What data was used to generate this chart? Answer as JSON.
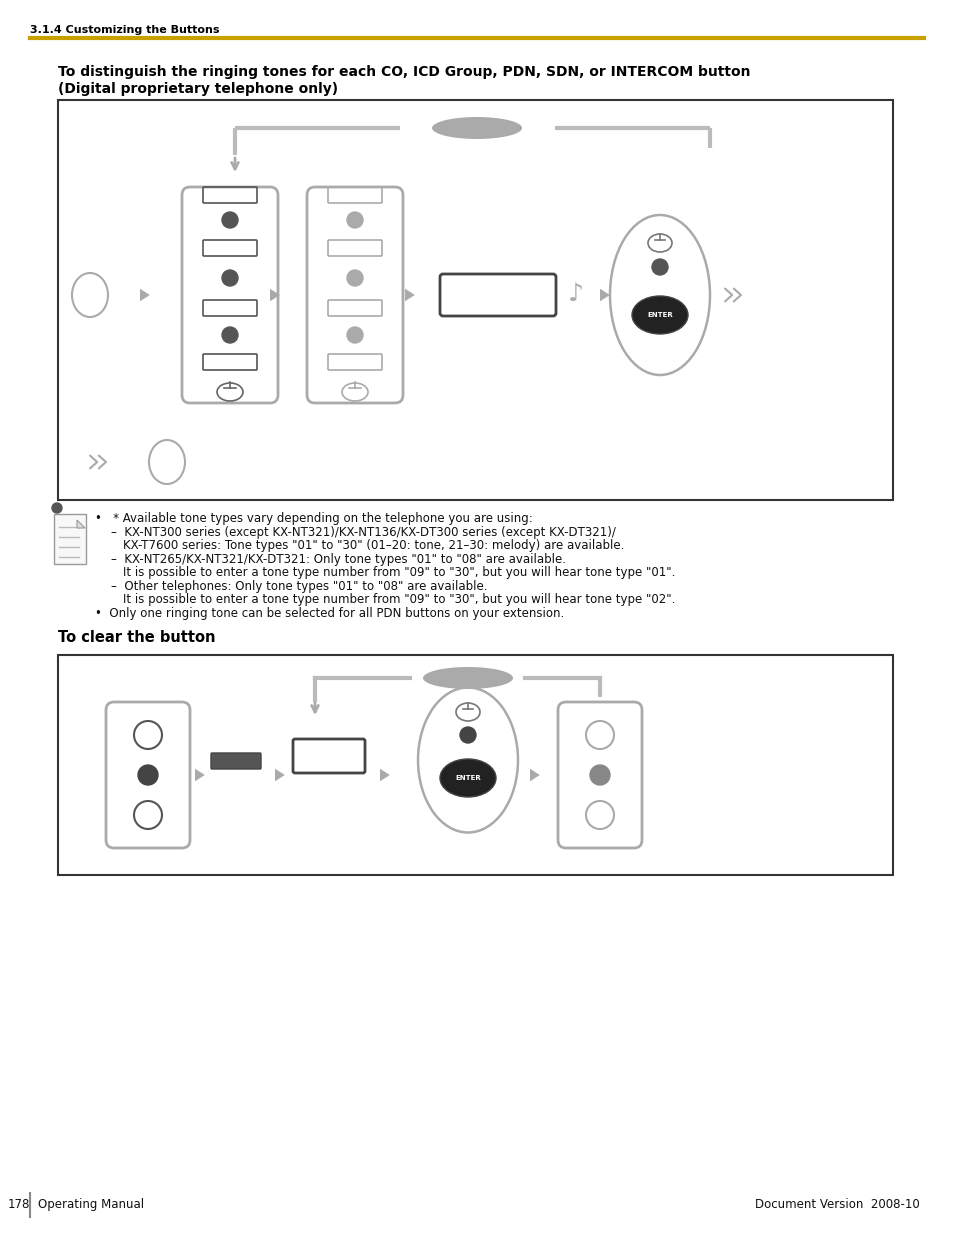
{
  "page_title": "3.1.4 Customizing the Buttons",
  "title_color": "#000000",
  "gold_line_color": "#C8A000",
  "section1_title_line1": "To distinguish the ringing tones for each CO, ICD Group, PDN, SDN, or INTERCOM button",
  "section1_title_line2": "(Digital proprietary telephone only)",
  "section2_title": "To clear the button",
  "footer_page": "178",
  "footer_left": "Operating Manual",
  "footer_right": "Document Version  2008-10",
  "bg_color": "#ffffff"
}
